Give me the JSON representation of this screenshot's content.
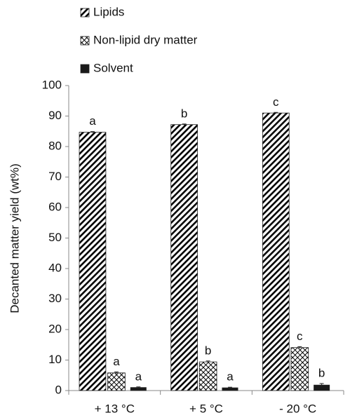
{
  "chart_data": {
    "type": "bar",
    "ylabel": "Decanted matter yield (wt%)",
    "categories": [
      "+ 13 °C",
      "+ 5 °C",
      "- 20 °C"
    ],
    "series": [
      {
        "name": "Lipids",
        "color": "#222222",
        "pattern": "hatch",
        "values": [
          84.7,
          87.2,
          91.0
        ],
        "errors": [
          0.2,
          0.2,
          0.2
        ],
        "labels": [
          "a",
          "b",
          "c"
        ]
      },
      {
        "name": "Non-lipid dry matter",
        "color": "#555555",
        "pattern": "crosshatch",
        "values": [
          5.8,
          9.4,
          14.1
        ],
        "errors": [
          0.3,
          0.3,
          0.3
        ],
        "labels": [
          "a",
          "b",
          "c"
        ]
      },
      {
        "name": "Solvent",
        "color": "#1a1a1a",
        "pattern": "solid",
        "values": [
          1.0,
          0.9,
          1.8
        ],
        "errors": [
          0.2,
          0.2,
          0.5
        ],
        "labels": [
          "a",
          "a",
          "b"
        ]
      }
    ],
    "ylim": [
      0,
      100
    ],
    "yticks": [
      0,
      10,
      20,
      30,
      40,
      50,
      60,
      70,
      80,
      90,
      100
    ],
    "legend": "top-left"
  }
}
